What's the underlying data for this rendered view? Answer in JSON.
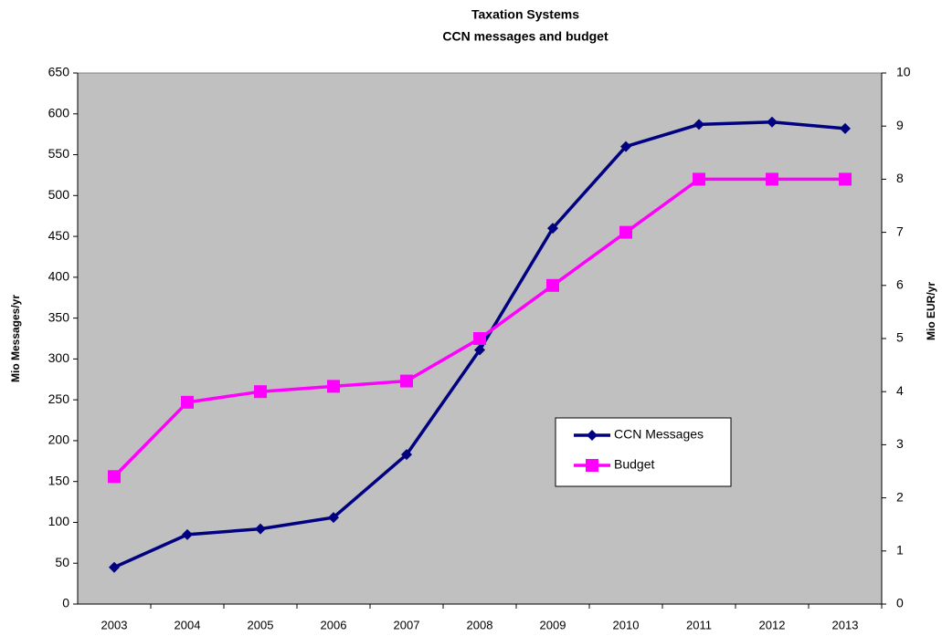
{
  "chart_data": {
    "type": "line",
    "title": "Taxation Systems",
    "subtitle": "CCN messages and budget",
    "y_label": "Mio Messages/yr",
    "y2_label": "Mio EUR/yr",
    "categories": [
      "2003",
      "2004",
      "2005",
      "2006",
      "2007",
      "2008",
      "2009",
      "2010",
      "2011",
      "2012",
      "2013"
    ],
    "series": [
      {
        "name": "CCN Messages",
        "color": "#000080",
        "marker": "diamond",
        "axis": "y",
        "values": [
          45,
          85,
          92,
          106,
          183,
          311,
          460,
          560,
          587,
          590,
          582
        ]
      },
      {
        "name": "Budget",
        "color": "#ff00ff",
        "marker": "square",
        "axis": "y2",
        "values": [
          2.4,
          3.8,
          4.0,
          4.1,
          4.2,
          5.0,
          6.0,
          7.0,
          8.0,
          8.0,
          8.0
        ]
      }
    ],
    "ylim": [
      0,
      650
    ],
    "yticks": [
      0,
      50,
      100,
      150,
      200,
      250,
      300,
      350,
      400,
      450,
      500,
      550,
      600,
      650
    ],
    "y2lim": [
      0,
      10
    ],
    "y2ticks": [
      0,
      1,
      2,
      3,
      4,
      5,
      6,
      7,
      8,
      9,
      10
    ],
    "plot_background": "#c0c0c0",
    "grid": false
  }
}
